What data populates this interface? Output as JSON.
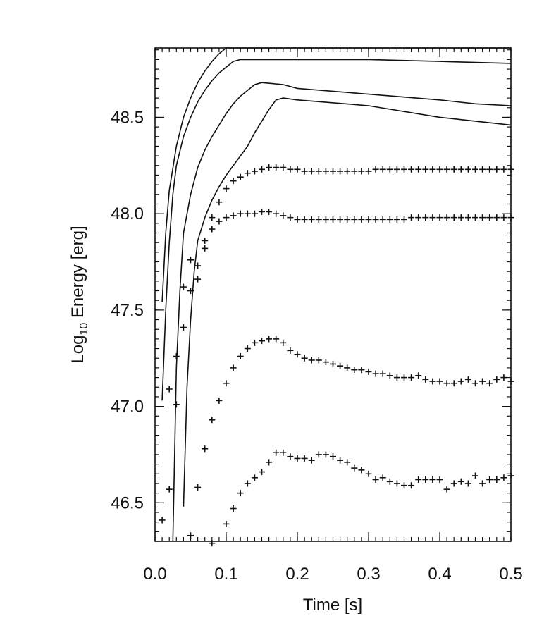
{
  "chart_data": {
    "type": "line",
    "xlabel": "Time [s]",
    "ylabel": {
      "prefix": "Log",
      "subscript": "10",
      "rest": " Energy [erg]"
    },
    "xlim": [
      0.0,
      0.5
    ],
    "ylim": [
      46.3,
      48.86
    ],
    "x_ticks": [
      "0.0",
      "0.1",
      "0.2",
      "0.3",
      "0.4",
      "0.5"
    ],
    "y_ticks": [
      "46.5",
      "47.0",
      "47.5",
      "48.0",
      "48.5"
    ],
    "x_minor_step": 0.01,
    "y_minor_step": 0.05,
    "grid": false,
    "legend": "none",
    "series": [
      {
        "style": "line",
        "points": [
          [
            0.01,
            47.54
          ],
          [
            0.015,
            47.9
          ],
          [
            0.02,
            48.12
          ],
          [
            0.03,
            48.35
          ],
          [
            0.04,
            48.5
          ],
          [
            0.05,
            48.6
          ],
          [
            0.06,
            48.68
          ],
          [
            0.07,
            48.74
          ],
          [
            0.08,
            48.79
          ],
          [
            0.09,
            48.83
          ],
          [
            0.1,
            48.86
          ],
          [
            0.2,
            48.86
          ],
          [
            0.3,
            48.86
          ],
          [
            0.4,
            48.86
          ],
          [
            0.5,
            48.86
          ]
        ]
      },
      {
        "style": "line",
        "points": [
          [
            0.01,
            47.03
          ],
          [
            0.015,
            47.5
          ],
          [
            0.02,
            47.85
          ],
          [
            0.025,
            48.1
          ],
          [
            0.03,
            48.25
          ],
          [
            0.04,
            48.4
          ],
          [
            0.05,
            48.5
          ],
          [
            0.06,
            48.58
          ],
          [
            0.07,
            48.64
          ],
          [
            0.08,
            48.69
          ],
          [
            0.09,
            48.73
          ],
          [
            0.1,
            48.76
          ],
          [
            0.11,
            48.79
          ],
          [
            0.12,
            48.8
          ],
          [
            0.2,
            48.8
          ],
          [
            0.3,
            48.8
          ],
          [
            0.4,
            48.79
          ],
          [
            0.5,
            48.78
          ]
        ]
      },
      {
        "style": "line",
        "points": [
          [
            0.025,
            46.3
          ],
          [
            0.03,
            47.2
          ],
          [
            0.035,
            47.6
          ],
          [
            0.04,
            47.9
          ],
          [
            0.05,
            48.1
          ],
          [
            0.06,
            48.24
          ],
          [
            0.07,
            48.33
          ],
          [
            0.08,
            48.4
          ],
          [
            0.09,
            48.46
          ],
          [
            0.1,
            48.52
          ],
          [
            0.11,
            48.57
          ],
          [
            0.12,
            48.61
          ],
          [
            0.13,
            48.64
          ],
          [
            0.14,
            48.67
          ],
          [
            0.15,
            48.68
          ],
          [
            0.18,
            48.67
          ],
          [
            0.2,
            48.65
          ],
          [
            0.3,
            48.62
          ],
          [
            0.4,
            48.59
          ],
          [
            0.45,
            48.57
          ],
          [
            0.5,
            48.56
          ]
        ]
      },
      {
        "style": "line",
        "points": [
          [
            0.04,
            46.48
          ],
          [
            0.045,
            47.1
          ],
          [
            0.05,
            47.45
          ],
          [
            0.055,
            47.7
          ],
          [
            0.06,
            47.86
          ],
          [
            0.07,
            47.98
          ],
          [
            0.08,
            48.07
          ],
          [
            0.09,
            48.14
          ],
          [
            0.1,
            48.2
          ],
          [
            0.11,
            48.25
          ],
          [
            0.12,
            48.3
          ],
          [
            0.13,
            48.35
          ],
          [
            0.14,
            48.42
          ],
          [
            0.15,
            48.48
          ],
          [
            0.16,
            48.54
          ],
          [
            0.17,
            48.59
          ],
          [
            0.18,
            48.6
          ],
          [
            0.2,
            48.59
          ],
          [
            0.3,
            48.56
          ],
          [
            0.4,
            48.5
          ],
          [
            0.45,
            48.48
          ],
          [
            0.5,
            48.46
          ]
        ]
      },
      {
        "style": "markers",
        "points": [
          [
            0.01,
            46.41
          ],
          [
            0.02,
            46.57
          ],
          [
            0.03,
            47.01
          ],
          [
            0.04,
            47.41
          ],
          [
            0.05,
            47.6
          ],
          [
            0.06,
            47.73
          ],
          [
            0.07,
            47.86
          ],
          [
            0.08,
            47.98
          ],
          [
            0.09,
            48.06
          ],
          [
            0.1,
            48.13
          ],
          [
            0.11,
            48.17
          ],
          [
            0.12,
            48.19
          ],
          [
            0.13,
            48.21
          ],
          [
            0.14,
            48.22
          ],
          [
            0.15,
            48.23
          ],
          [
            0.16,
            48.24
          ],
          [
            0.17,
            48.24
          ],
          [
            0.18,
            48.24
          ],
          [
            0.19,
            48.23
          ],
          [
            0.2,
            48.23
          ],
          [
            0.21,
            48.22
          ],
          [
            0.22,
            48.22
          ],
          [
            0.23,
            48.22
          ],
          [
            0.24,
            48.22
          ],
          [
            0.25,
            48.22
          ],
          [
            0.26,
            48.22
          ],
          [
            0.27,
            48.22
          ],
          [
            0.28,
            48.22
          ],
          [
            0.29,
            48.22
          ],
          [
            0.3,
            48.22
          ],
          [
            0.31,
            48.23
          ],
          [
            0.32,
            48.23
          ],
          [
            0.33,
            48.23
          ],
          [
            0.34,
            48.23
          ],
          [
            0.35,
            48.23
          ],
          [
            0.36,
            48.23
          ],
          [
            0.37,
            48.23
          ],
          [
            0.38,
            48.23
          ],
          [
            0.39,
            48.23
          ],
          [
            0.4,
            48.23
          ],
          [
            0.41,
            48.23
          ],
          [
            0.42,
            48.23
          ],
          [
            0.43,
            48.23
          ],
          [
            0.44,
            48.23
          ],
          [
            0.45,
            48.23
          ],
          [
            0.46,
            48.23
          ],
          [
            0.47,
            48.23
          ],
          [
            0.48,
            48.23
          ],
          [
            0.49,
            48.23
          ],
          [
            0.5,
            48.23
          ]
        ]
      },
      {
        "style": "markers",
        "points": [
          [
            0.02,
            47.09
          ],
          [
            0.03,
            47.26
          ],
          [
            0.04,
            47.62
          ],
          [
            0.05,
            47.76
          ],
          [
            0.06,
            47.66
          ],
          [
            0.07,
            47.82
          ],
          [
            0.08,
            47.92
          ],
          [
            0.09,
            47.96
          ],
          [
            0.1,
            47.98
          ],
          [
            0.11,
            47.99
          ],
          [
            0.12,
            48.0
          ],
          [
            0.13,
            48.0
          ],
          [
            0.14,
            48.0
          ],
          [
            0.15,
            48.01
          ],
          [
            0.16,
            48.01
          ],
          [
            0.17,
            48.0
          ],
          [
            0.18,
            47.99
          ],
          [
            0.19,
            47.98
          ],
          [
            0.2,
            47.97
          ],
          [
            0.21,
            47.97
          ],
          [
            0.22,
            47.97
          ],
          [
            0.23,
            47.97
          ],
          [
            0.24,
            47.97
          ],
          [
            0.25,
            47.97
          ],
          [
            0.26,
            47.97
          ],
          [
            0.27,
            47.97
          ],
          [
            0.28,
            47.97
          ],
          [
            0.29,
            47.97
          ],
          [
            0.3,
            47.97
          ],
          [
            0.31,
            47.97
          ],
          [
            0.32,
            47.97
          ],
          [
            0.33,
            47.97
          ],
          [
            0.34,
            47.97
          ],
          [
            0.35,
            47.97
          ],
          [
            0.36,
            47.98
          ],
          [
            0.37,
            47.98
          ],
          [
            0.38,
            47.98
          ],
          [
            0.39,
            47.98
          ],
          [
            0.4,
            47.98
          ],
          [
            0.41,
            47.98
          ],
          [
            0.42,
            47.98
          ],
          [
            0.43,
            47.98
          ],
          [
            0.44,
            47.98
          ],
          [
            0.45,
            47.98
          ],
          [
            0.46,
            47.98
          ],
          [
            0.47,
            47.98
          ],
          [
            0.48,
            47.98
          ],
          [
            0.49,
            47.98
          ],
          [
            0.5,
            47.98
          ]
        ]
      },
      {
        "style": "markers",
        "points": [
          [
            0.06,
            46.58
          ],
          [
            0.07,
            46.78
          ],
          [
            0.08,
            46.93
          ],
          [
            0.09,
            47.03
          ],
          [
            0.1,
            47.12
          ],
          [
            0.11,
            47.2
          ],
          [
            0.12,
            47.26
          ],
          [
            0.13,
            47.3
          ],
          [
            0.14,
            47.33
          ],
          [
            0.15,
            47.34
          ],
          [
            0.16,
            47.35
          ],
          [
            0.17,
            47.35
          ],
          [
            0.18,
            47.33
          ],
          [
            0.19,
            47.29
          ],
          [
            0.2,
            47.27
          ],
          [
            0.21,
            47.25
          ],
          [
            0.22,
            47.24
          ],
          [
            0.23,
            47.24
          ],
          [
            0.24,
            47.23
          ],
          [
            0.25,
            47.22
          ],
          [
            0.26,
            47.21
          ],
          [
            0.27,
            47.2
          ],
          [
            0.28,
            47.19
          ],
          [
            0.29,
            47.19
          ],
          [
            0.3,
            47.18
          ],
          [
            0.31,
            47.17
          ],
          [
            0.32,
            47.17
          ],
          [
            0.33,
            47.16
          ],
          [
            0.34,
            47.15
          ],
          [
            0.35,
            47.15
          ],
          [
            0.36,
            47.15
          ],
          [
            0.37,
            47.16
          ],
          [
            0.38,
            47.14
          ],
          [
            0.39,
            47.13
          ],
          [
            0.4,
            47.13
          ],
          [
            0.41,
            47.12
          ],
          [
            0.42,
            47.12
          ],
          [
            0.43,
            47.13
          ],
          [
            0.44,
            47.14
          ],
          [
            0.45,
            47.12
          ],
          [
            0.46,
            47.13
          ],
          [
            0.47,
            47.12
          ],
          [
            0.48,
            47.14
          ],
          [
            0.49,
            47.15
          ],
          [
            0.5,
            47.13
          ]
        ]
      },
      {
        "style": "markers",
        "points": [
          [
            0.05,
            46.33
          ],
          [
            0.08,
            46.29
          ],
          [
            0.1,
            46.39
          ],
          [
            0.11,
            46.47
          ],
          [
            0.12,
            46.55
          ],
          [
            0.13,
            46.6
          ],
          [
            0.14,
            46.63
          ],
          [
            0.15,
            46.66
          ],
          [
            0.16,
            46.71
          ],
          [
            0.17,
            46.76
          ],
          [
            0.18,
            46.76
          ],
          [
            0.19,
            46.74
          ],
          [
            0.2,
            46.73
          ],
          [
            0.21,
            46.73
          ],
          [
            0.22,
            46.72
          ],
          [
            0.23,
            46.75
          ],
          [
            0.24,
            46.75
          ],
          [
            0.25,
            46.74
          ],
          [
            0.26,
            46.72
          ],
          [
            0.27,
            46.71
          ],
          [
            0.28,
            46.68
          ],
          [
            0.29,
            46.67
          ],
          [
            0.3,
            46.65
          ],
          [
            0.31,
            46.62
          ],
          [
            0.32,
            46.63
          ],
          [
            0.33,
            46.61
          ],
          [
            0.34,
            46.6
          ],
          [
            0.35,
            46.59
          ],
          [
            0.36,
            46.59
          ],
          [
            0.37,
            46.62
          ],
          [
            0.38,
            46.62
          ],
          [
            0.39,
            46.62
          ],
          [
            0.4,
            46.62
          ],
          [
            0.41,
            46.57
          ],
          [
            0.42,
            46.6
          ],
          [
            0.43,
            46.61
          ],
          [
            0.44,
            46.6
          ],
          [
            0.45,
            46.64
          ],
          [
            0.46,
            46.6
          ],
          [
            0.47,
            46.62
          ],
          [
            0.48,
            46.62
          ],
          [
            0.49,
            46.63
          ],
          [
            0.5,
            46.64
          ]
        ]
      }
    ]
  }
}
